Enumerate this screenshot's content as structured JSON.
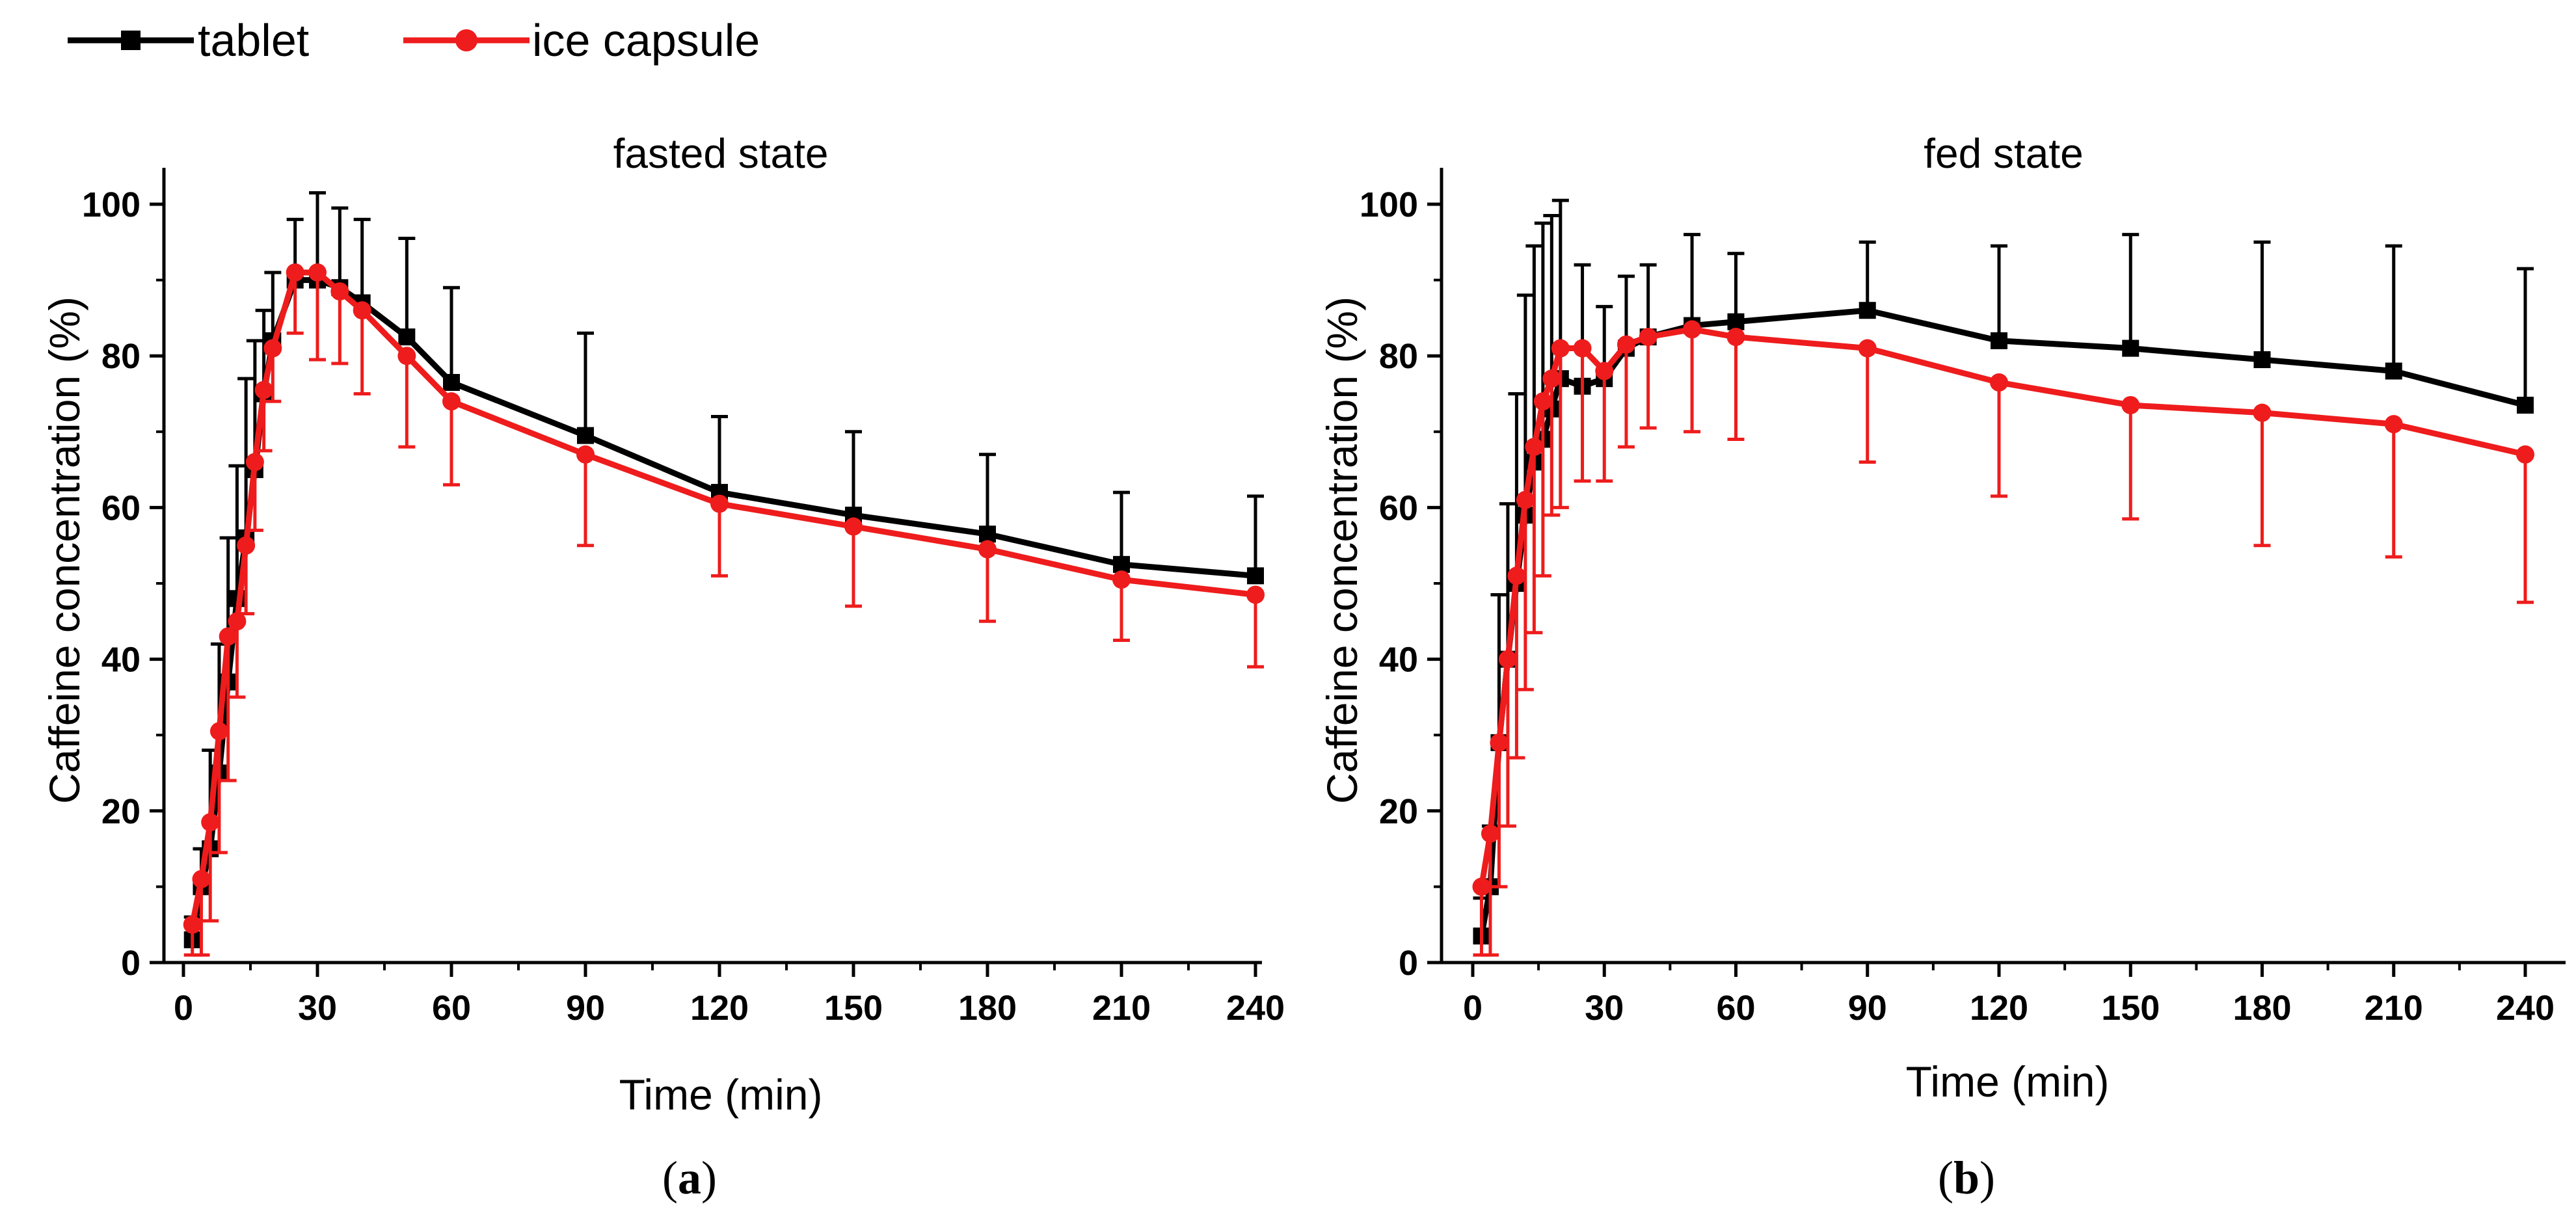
{
  "legend": [
    {
      "name": "tablet",
      "color": "#000000",
      "marker": "square"
    },
    {
      "name": "ice capsule",
      "color": "#ee1c1c",
      "marker": "circle"
    }
  ],
  "chart_data": [
    {
      "type": "line",
      "panel_label": {
        "open": "(",
        "letter": "a",
        "close": ")"
      },
      "title": "fasted state",
      "xlabel": "Time (min)",
      "ylabel": "Caffeine concentration (%)",
      "xlim": [
        0,
        240
      ],
      "ylim": [
        0,
        100
      ],
      "xticks": [
        0,
        30,
        60,
        90,
        120,
        150,
        180,
        210,
        240
      ],
      "yticks": [
        0,
        20,
        40,
        60,
        80,
        100
      ],
      "series": [
        {
          "name": "tablet",
          "x": [
            2,
            4,
            6,
            8,
            10,
            12,
            14,
            16,
            18,
            20,
            25,
            30,
            35,
            40,
            50,
            60,
            90,
            120,
            150,
            180,
            210,
            240
          ],
          "y": [
            3,
            10,
            15,
            25,
            37,
            48,
            56,
            65,
            75,
            82,
            90,
            90,
            89,
            87,
            82.5,
            76.5,
            69.5,
            62,
            59,
            56.5,
            52.5,
            51
          ],
          "error": [
            3,
            5,
            13,
            17,
            19,
            17.5,
            21,
            17,
            11,
            9,
            8,
            11.5,
            10.5,
            11,
            13,
            12.5,
            13.5,
            10,
            11,
            10.5,
            9.5,
            10.5
          ]
        },
        {
          "name": "ice capsule",
          "x": [
            2,
            4,
            6,
            8,
            10,
            12,
            14,
            16,
            18,
            20,
            25,
            30,
            35,
            40,
            50,
            60,
            90,
            120,
            150,
            180,
            210,
            240
          ],
          "y": [
            5,
            11,
            18.5,
            30.5,
            43,
            45,
            55,
            66,
            75.5,
            81,
            91,
            91,
            88.5,
            86,
            80,
            74,
            67,
            60.5,
            57.5,
            54.5,
            50.5,
            48.5
          ],
          "error": [
            4,
            10,
            13,
            16,
            19,
            10,
            9,
            9,
            8,
            7,
            8,
            11.5,
            9.5,
            11,
            12,
            11,
            12,
            9.5,
            10.5,
            9.5,
            8,
            9.5
          ]
        }
      ]
    },
    {
      "type": "line",
      "panel_label": {
        "open": "(",
        "letter": "b",
        "close": ")"
      },
      "title": "fed state",
      "xlabel": "Time (min)",
      "ylabel": "Caffeine concentration (%)",
      "xlim": [
        0,
        240
      ],
      "ylim": [
        0,
        100
      ],
      "xticks": [
        0,
        30,
        60,
        90,
        120,
        150,
        180,
        210,
        240
      ],
      "yticks": [
        0,
        20,
        40,
        60,
        80,
        100
      ],
      "series": [
        {
          "name": "tablet",
          "x": [
            2,
            4,
            6,
            8,
            10,
            12,
            14,
            16,
            18,
            20,
            25,
            30,
            35,
            40,
            50,
            60,
            90,
            120,
            150,
            180,
            210,
            240
          ],
          "y": [
            3.5,
            10,
            29,
            40,
            50,
            59,
            66,
            69,
            73,
            77,
            76,
            77,
            81,
            82.5,
            84,
            84.5,
            86,
            82,
            81,
            79.5,
            78,
            73.5
          ],
          "error": [
            5,
            8,
            19.5,
            20.5,
            25,
            29,
            28.5,
            28.5,
            25.5,
            23.5,
            16,
            9.5,
            9.5,
            9.5,
            12,
            9,
            9,
            12.5,
            15,
            15.5,
            16.5,
            18
          ]
        },
        {
          "name": "ice capsule",
          "x": [
            2,
            4,
            6,
            8,
            10,
            12,
            14,
            16,
            18,
            20,
            25,
            30,
            35,
            40,
            50,
            60,
            90,
            120,
            150,
            180,
            210,
            240
          ],
          "y": [
            10,
            17,
            29,
            40,
            51,
            61,
            68,
            74,
            77,
            81,
            81,
            78,
            81.5,
            82.5,
            83.5,
            82.5,
            81,
            76.5,
            73.5,
            72.5,
            71,
            67
          ],
          "error": [
            9,
            16,
            19,
            22,
            24,
            25,
            24.5,
            23,
            18,
            21,
            17.5,
            14.5,
            13.5,
            12,
            13.5,
            13.5,
            15,
            15,
            15,
            17.5,
            17.5,
            19.5
          ]
        }
      ]
    }
  ]
}
